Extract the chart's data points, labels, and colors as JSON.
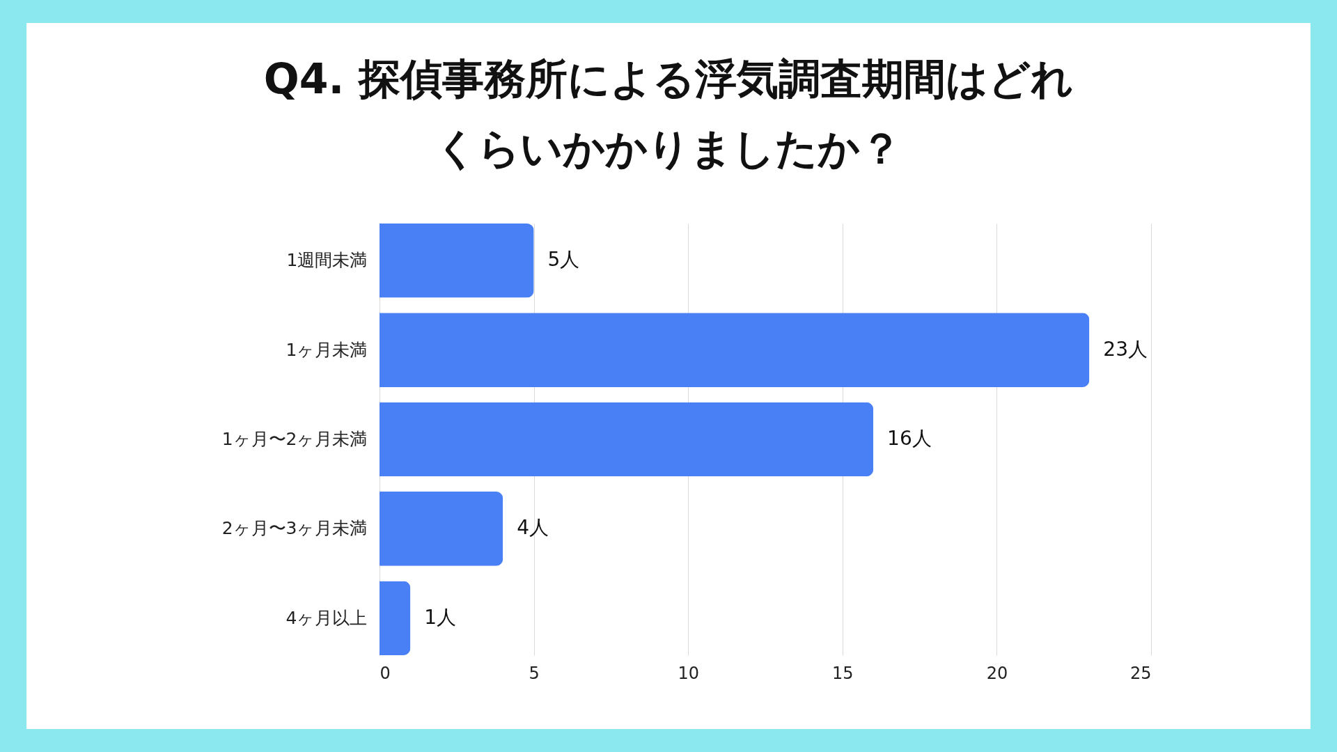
{
  "chart_data": {
    "type": "bar",
    "orientation": "horizontal",
    "title": "Q4. 探偵事務所による浮気調査期間はどれくらいかかりましたか？",
    "categories": [
      "1週間未満",
      "1ヶ月未満",
      "1ヶ月〜2ヶ月未満",
      "2ヶ月〜3ヶ月未満",
      "4ヶ月以上"
    ],
    "values": [
      5,
      23,
      16,
      4,
      1
    ],
    "value_labels": [
      "5人",
      "23人",
      "16人",
      "4人",
      "1人"
    ],
    "color": "#4a80f6",
    "xlim": [
      0,
      25
    ],
    "xticks": [
      0,
      5,
      10,
      15,
      20,
      25
    ],
    "grid": "x"
  }
}
